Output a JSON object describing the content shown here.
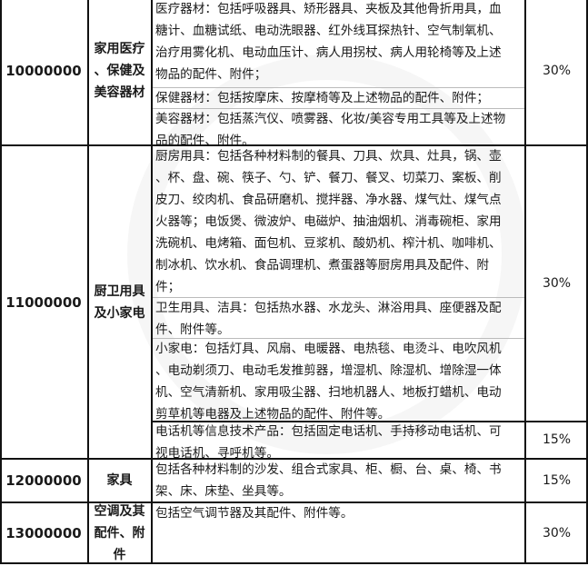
{
  "rows": [
    {
      "code": "10000000",
      "category": [
        "家用医疗",
        "、保健及",
        "美容器材"
      ],
      "items": [
        [
          "医疗器材：包括呼吸器具、矫形器具、夹板及其他骨折用具，血",
          "糖计、血糖试纸、电动洗眼器、红外线耳探热针、空气制氧机、",
          "治疗用雾化机、电动血压计、病人用拐杖、病人用轮椅等及上述",
          "物品的配件、附件；"
        ],
        [
          "保健器材：包括按摩床、按摩椅等及上述物品的配件、附件；"
        ],
        [
          "美容器材：包括蒸汽仪、喷雾器、化妆/美容专用工具等及上述物",
          "品的配件、附件。"
        ]
      ],
      "rate": "30%"
    },
    {
      "code": "11000000",
      "category": [
        "厨卫用具",
        "及小家电"
      ],
      "items": [
        [
          "厨房用具：包括各种材料制的餐具、刀具、炊具、灶具，锅、壶",
          "、杯、盘、碗、筷子、勺、铲、餐刀、餐叉、切菜刀、案板、削",
          "皮刀、绞肉机、食品研磨机、搅拌器、净水器、煤气灶、煤气点",
          "火器等；电饭煲、微波炉、电磁炉、抽油烟机、消毒碗柜、家用",
          "洗碗机、电烤箱、面包机、豆浆机、酸奶机、榨汁机、咖啡机、",
          "制冰机、饮水机、食品调理机、煮蛋器等厨房用具及配件、附",
          "件；"
        ],
        [
          "卫生用具、洁具：包括热水器、水龙头、淋浴用具、座便器及配",
          "件、附件等。"
        ],
        [
          "小家电：包括灯具、风扇、电暖器、电热毯、电烫斗、电吹风机",
          "、电动剃须刀、电动毛发推剪器，增湿机、除湿机、增除湿一体",
          "机、空气清新机、家用吸尘器、扫地机器人、地板打蜡机、电动",
          "剪草机等电器及上述物品的配件、附件等。"
        ],
        [
          "电话机等信息技术产品：包括固定电话机、手持移动电话机、可",
          "视电话机、寻呼机等。"
        ]
      ],
      "rate": "30%",
      "rate2": "15%"
    },
    {
      "code": "12000000",
      "category": [
        "家具"
      ],
      "items": [
        [
          "包括各种材料制的沙发、组合式家具、柜、橱、台、桌、椅、书",
          "架、床、床垫、坐具等。"
        ]
      ],
      "rate": "15%"
    },
    {
      "code": "13000000",
      "category": [
        "空调及其",
        "配件、附",
        "件"
      ],
      "items": [
        [
          "包括空气调节器及其配件、附件等。"
        ]
      ],
      "rate": "30%"
    }
  ]
}
